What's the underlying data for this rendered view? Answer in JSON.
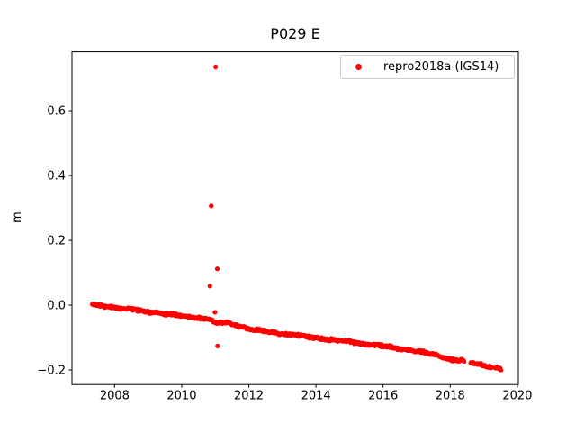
{
  "chart_data": {
    "type": "scatter",
    "title": "P029 E",
    "xlabel": "",
    "ylabel": "m",
    "grid": false,
    "xlim": [
      2006.73,
      2020.03
    ],
    "ylim": [
      -0.245,
      0.782
    ],
    "xticks": {
      "values": [
        2008,
        2010,
        2012,
        2014,
        2016,
        2018,
        2020
      ],
      "labels": [
        "2008",
        "2010",
        "2012",
        "2014",
        "2016",
        "2018",
        "2020"
      ]
    },
    "yticks": {
      "values": [
        -0.2,
        0.0,
        0.2,
        0.4,
        0.6
      ],
      "labels": [
        "−0.2",
        "0.0",
        "0.2",
        "0.4",
        "0.6"
      ]
    },
    "legend": {
      "position": "upper right",
      "label": "repro2018a (IGS14)"
    },
    "series": [
      {
        "name": "repro2018a (IGS14)",
        "color": "#ff0000",
        "marker": "point",
        "marker_radius_px": 2.4,
        "points_per_year": 80,
        "noise_amplitude_m": 0.005,
        "trend_anchors": [
          [
            2007.33,
            0.002
          ],
          [
            2008.0,
            -0.007
          ],
          [
            2009.0,
            -0.02
          ],
          [
            2010.0,
            -0.033
          ],
          [
            2010.85,
            -0.044
          ],
          [
            2011.05,
            -0.058
          ],
          [
            2011.35,
            -0.053
          ],
          [
            2012.1,
            -0.076
          ],
          [
            2013.0,
            -0.088
          ],
          [
            2014.0,
            -0.101
          ],
          [
            2015.0,
            -0.113
          ],
          [
            2016.0,
            -0.127
          ],
          [
            2016.9,
            -0.14
          ],
          [
            2017.5,
            -0.152
          ],
          [
            2018.0,
            -0.167
          ],
          [
            2018.42,
            -0.172
          ],
          [
            2018.6,
            -0.177
          ],
          [
            2019.0,
            -0.186
          ],
          [
            2019.52,
            -0.196
          ]
        ],
        "gaps": [
          [
            2018.42,
            2018.6
          ],
          [
            2019.25,
            2019.32
          ]
        ],
        "outliers": [
          [
            2010.84,
            0.059
          ],
          [
            2010.88,
            0.306
          ],
          [
            2010.99,
            -0.022
          ],
          [
            2011.01,
            0.735
          ],
          [
            2011.06,
            0.112
          ],
          [
            2011.07,
            -0.126
          ]
        ]
      }
    ]
  }
}
